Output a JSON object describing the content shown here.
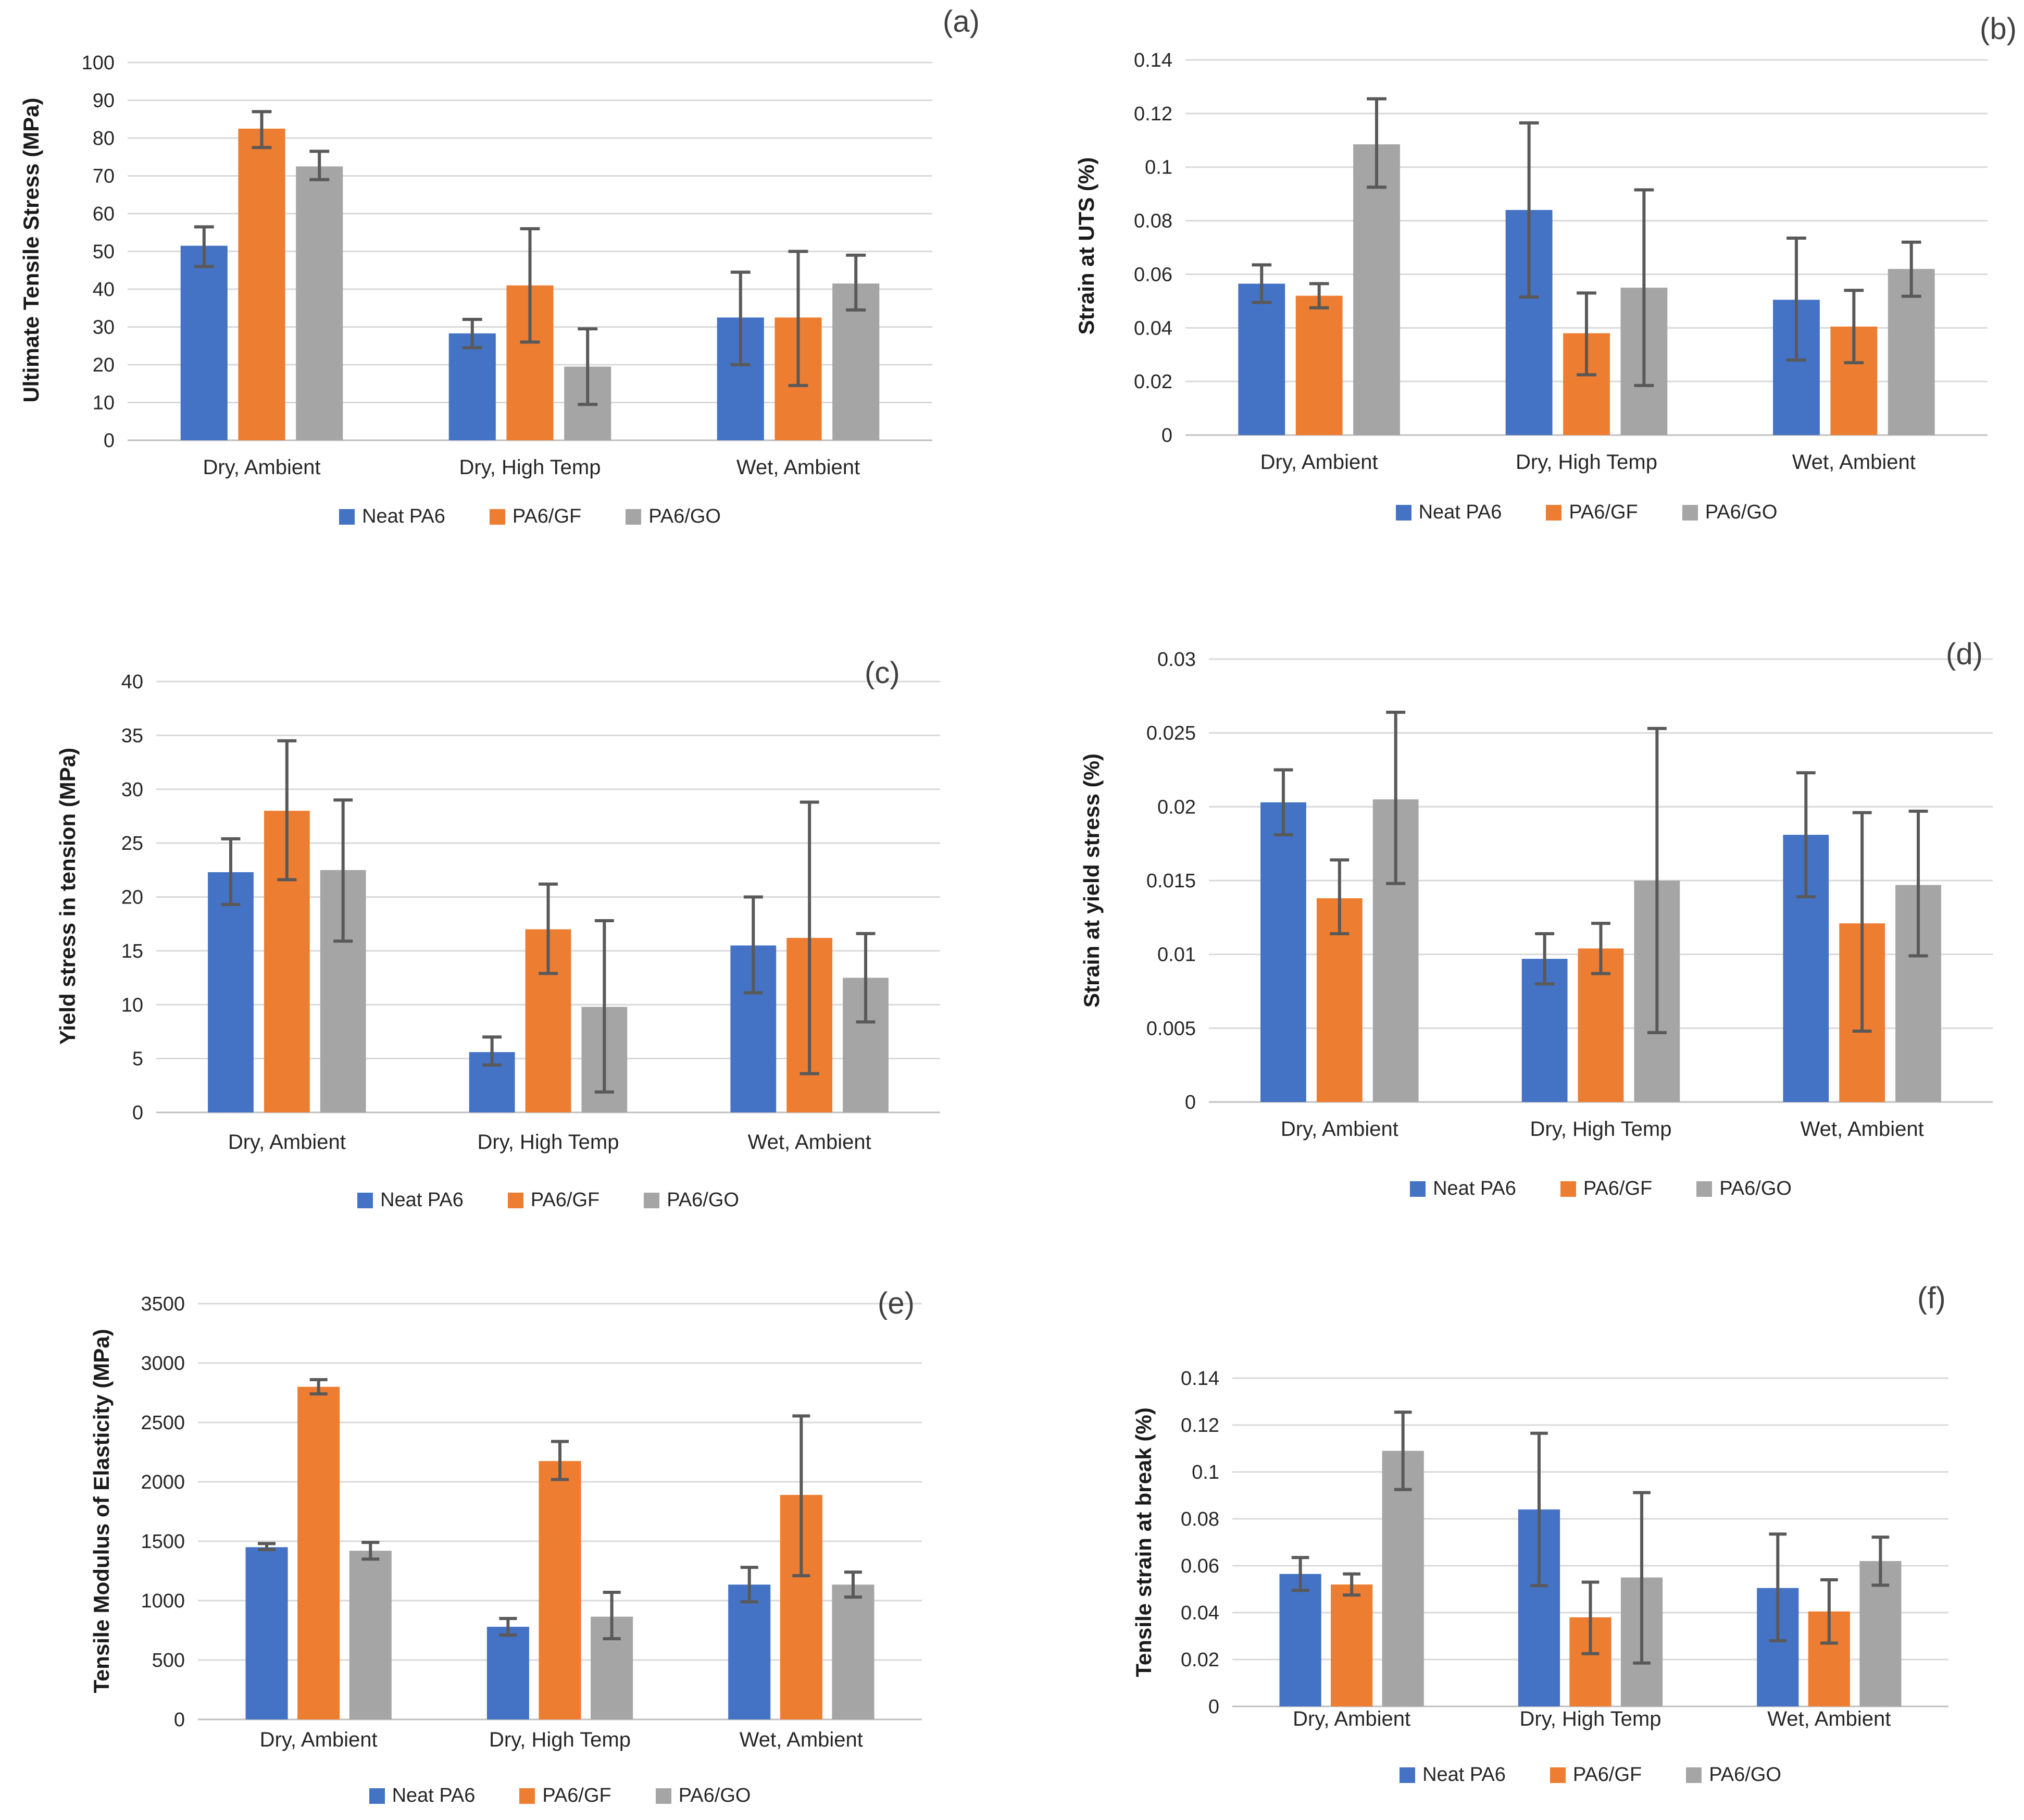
{
  "figure": {
    "background_color": "#FFFFFF",
    "gridline_color": "#D9D9D9",
    "axis_line_color": "#BFBFBF",
    "error_bar_color": "#595959",
    "text_color": "#262626",
    "series_palette": {
      "neat_pa6": "#4472C4",
      "pa6_gf": "#ED7D31",
      "pa6_go": "#A5A5A5"
    }
  },
  "chart_data": [
    {
      "panel_label": "(a)",
      "type": "bar",
      "ylabel": "Ultimate Tensile Stress (MPa)",
      "xlabel": "",
      "ylim": [
        0,
        100
      ],
      "ytick_step": 10,
      "grid": true,
      "legend_position": "bottom",
      "categories": [
        "Dry, Ambient",
        "Dry, High Temp",
        "Wet, Ambient"
      ],
      "series": [
        {
          "name": "Neat PA6",
          "color": "#4472C4",
          "values": [
            51.5,
            28.3,
            32.5
          ],
          "error_low": [
            46,
            24.5,
            20
          ],
          "error_high": [
            56.5,
            32,
            44.5
          ]
        },
        {
          "name": "PA6/GF",
          "color": "#ED7D31",
          "values": [
            82.5,
            41,
            32.5
          ],
          "error_low": [
            77.5,
            26,
            14.5
          ],
          "error_high": [
            87,
            56,
            50
          ]
        },
        {
          "name": "PA6/GO",
          "color": "#A5A5A5",
          "values": [
            72.5,
            19.5,
            41.5
          ],
          "error_low": [
            69,
            9.5,
            34.5
          ],
          "error_high": [
            76.5,
            29.5,
            49
          ]
        }
      ]
    },
    {
      "panel_label": "(b)",
      "type": "bar",
      "ylabel": "Strain at UTS (%)",
      "xlabel": "",
      "ylim": [
        0,
        0.14
      ],
      "ytick_step": 0.02,
      "grid": true,
      "legend_position": "bottom",
      "categories": [
        "Dry, Ambient",
        "Dry, High Temp",
        "Wet, Ambient"
      ],
      "series": [
        {
          "name": "Neat PA6",
          "color": "#4472C4",
          "values": [
            0.0565,
            0.084,
            0.0505
          ],
          "error_low": [
            0.0495,
            0.0515,
            0.028
          ],
          "error_high": [
            0.0635,
            0.1165,
            0.0735
          ]
        },
        {
          "name": "PA6/GF",
          "color": "#ED7D31",
          "values": [
            0.052,
            0.038,
            0.0405
          ],
          "error_low": [
            0.0475,
            0.0225,
            0.027
          ],
          "error_high": [
            0.0565,
            0.053,
            0.054
          ]
        },
        {
          "name": "PA6/GO",
          "color": "#A5A5A5",
          "values": [
            0.1085,
            0.055,
            0.062
          ],
          "error_low": [
            0.0925,
            0.0185,
            0.0518
          ],
          "error_high": [
            0.1255,
            0.0915,
            0.072
          ]
        }
      ]
    },
    {
      "panel_label": "(c)",
      "type": "bar",
      "ylabel": "Yield stress in tension (MPa)",
      "xlabel": "",
      "ylim": [
        0,
        40
      ],
      "ytick_step": 5,
      "grid": true,
      "legend_position": "bottom",
      "categories": [
        "Dry, Ambient",
        "Dry, High Temp",
        "Wet, Ambient"
      ],
      "series": [
        {
          "name": "Neat PA6",
          "color": "#4472C4",
          "values": [
            22.3,
            5.6,
            15.5
          ],
          "error_low": [
            19.3,
            4.4,
            11.1
          ],
          "error_high": [
            25.4,
            7.0,
            20.0
          ]
        },
        {
          "name": "PA6/GF",
          "color": "#ED7D31",
          "values": [
            28,
            17,
            16.2
          ],
          "error_low": [
            21.6,
            12.9,
            3.6
          ],
          "error_high": [
            34.5,
            21.2,
            28.8
          ]
        },
        {
          "name": "PA6/GO",
          "color": "#A5A5A5",
          "values": [
            22.5,
            9.8,
            12.5
          ],
          "error_low": [
            15.9,
            1.9,
            8.4
          ],
          "error_high": [
            29.0,
            17.8,
            16.6
          ]
        }
      ]
    },
    {
      "panel_label": "(d)",
      "type": "bar",
      "ylabel": "Strain at yield stress (%)",
      "xlabel": "",
      "ylim": [
        0,
        0.03
      ],
      "ytick_step": 0.005,
      "grid": true,
      "legend_position": "bottom",
      "categories": [
        "Dry, Ambient",
        "Dry, High Temp",
        "Wet, Ambient"
      ],
      "series": [
        {
          "name": "Neat PA6",
          "color": "#4472C4",
          "values": [
            0.0203,
            0.0097,
            0.0181
          ],
          "error_low": [
            0.0181,
            0.008,
            0.0139
          ],
          "error_high": [
            0.0225,
            0.0114,
            0.0223
          ]
        },
        {
          "name": "PA6/GF",
          "color": "#ED7D31",
          "values": [
            0.0138,
            0.0104,
            0.0121
          ],
          "error_low": [
            0.0114,
            0.0087,
            0.0048
          ],
          "error_high": [
            0.0164,
            0.0121,
            0.0196
          ]
        },
        {
          "name": "PA6/GO",
          "color": "#A5A5A5",
          "values": [
            0.0205,
            0.015,
            0.0147
          ],
          "error_low": [
            0.0148,
            0.0047,
            0.0099
          ],
          "error_high": [
            0.0264,
            0.0253,
            0.0197
          ]
        }
      ]
    },
    {
      "panel_label": "(e)",
      "type": "bar",
      "ylabel": "Tensile Modulus of Elasticity (MPa)",
      "xlabel": "",
      "ylim": [
        0,
        3500
      ],
      "ytick_step": 500,
      "grid": true,
      "legend_position": "bottom",
      "categories": [
        "Dry, Ambient",
        "Dry, High Temp",
        "Wet, Ambient"
      ],
      "series": [
        {
          "name": "Neat PA6",
          "color": "#4472C4",
          "values": [
            1450,
            780,
            1135
          ],
          "error_low": [
            1430,
            710,
            990
          ],
          "error_high": [
            1480,
            850,
            1280
          ]
        },
        {
          "name": "PA6/GF",
          "color": "#ED7D31",
          "values": [
            2800,
            2175,
            1890
          ],
          "error_low": [
            2740,
            2020,
            1210
          ],
          "error_high": [
            2860,
            2340,
            2555
          ]
        },
        {
          "name": "PA6/GO",
          "color": "#A5A5A5",
          "values": [
            1420,
            865,
            1135
          ],
          "error_low": [
            1350,
            680,
            1030
          ],
          "error_high": [
            1490,
            1070,
            1240
          ]
        }
      ]
    },
    {
      "panel_label": "(f)",
      "type": "bar",
      "ylabel": "Tensile strain at break (%)",
      "xlabel": "",
      "ylim": [
        0,
        0.14
      ],
      "ytick_step": 0.02,
      "grid": true,
      "legend_position": "bottom",
      "categories": [
        "Dry, Ambient",
        "Dry, High Temp",
        "Wet, Ambient"
      ],
      "series": [
        {
          "name": "Neat PA6",
          "color": "#4472C4",
          "values": [
            0.0565,
            0.084,
            0.0505
          ],
          "error_low": [
            0.0495,
            0.0515,
            0.028
          ],
          "error_high": [
            0.0635,
            0.1165,
            0.0735
          ]
        },
        {
          "name": "PA6/GF",
          "color": "#ED7D31",
          "values": [
            0.052,
            0.038,
            0.0405
          ],
          "error_low": [
            0.0475,
            0.0225,
            0.027
          ],
          "error_high": [
            0.0565,
            0.053,
            0.054
          ]
        },
        {
          "name": "PA6/GO",
          "color": "#A5A5A5",
          "values": [
            0.109,
            0.055,
            0.062
          ],
          "error_low": [
            0.0925,
            0.0185,
            0.0517
          ],
          "error_high": [
            0.1255,
            0.0912,
            0.0722
          ]
        }
      ]
    }
  ]
}
